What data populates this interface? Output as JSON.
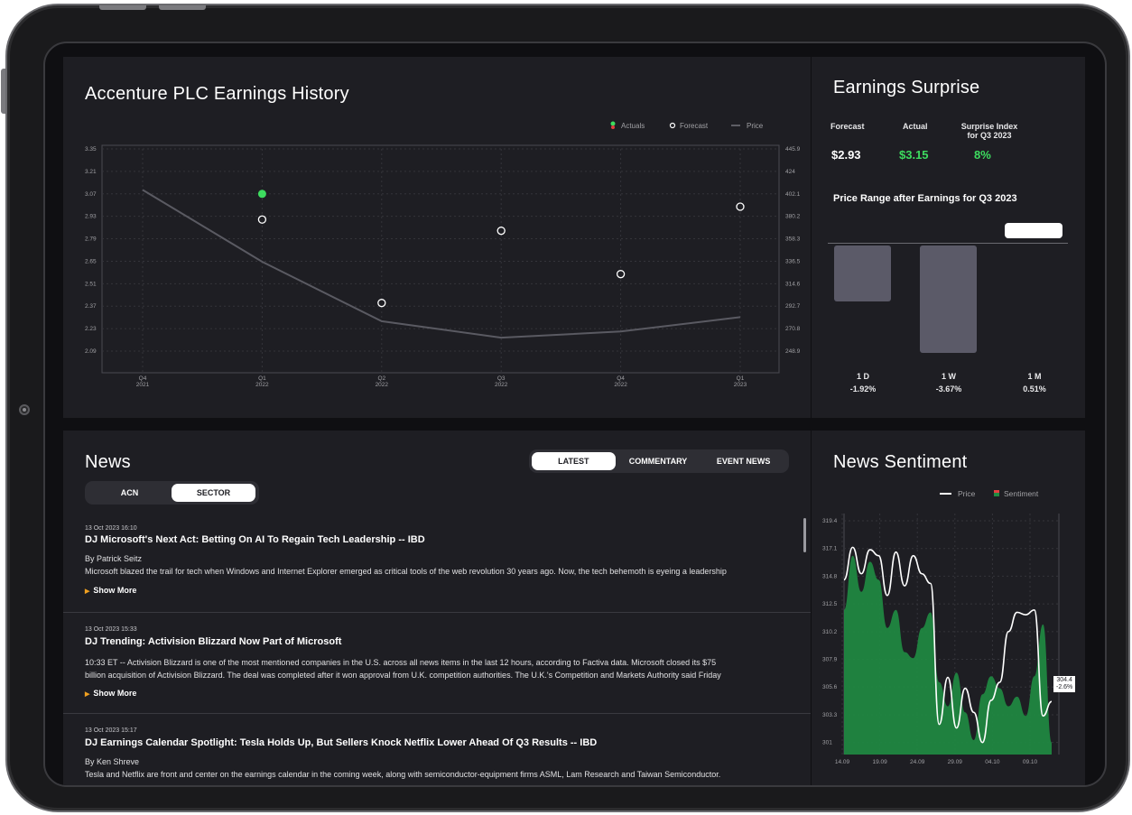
{
  "earnings_history": {
    "title": "Accenture PLC Earnings History",
    "legend": {
      "actuals": "Actuals",
      "forecast": "Forecast",
      "price": "Price"
    }
  },
  "earnings_surprise": {
    "title": "Earnings Surprise",
    "forecast_label": "Forecast",
    "actual_label": "Actual",
    "surprise_label_line1": "Surprise Index",
    "surprise_label_line2": "for Q3 2023",
    "forecast_value": "$2.93",
    "actual_value": "$3.15",
    "surprise_value": "8%",
    "range_title": "Price Range after Earnings for Q3 2023",
    "ranges": [
      {
        "period": "1 D",
        "change": "-1.92%",
        "value": -1.92
      },
      {
        "period": "1 W",
        "change": "-3.67%",
        "value": -3.67
      },
      {
        "period": "1 M",
        "change": "0.51%",
        "value": 0.51
      }
    ]
  },
  "news": {
    "title": "News",
    "tabs": [
      "LATEST",
      "COMMENTARY",
      "EVENT NEWS"
    ],
    "scope_tabs": [
      "ACN",
      "SECTOR"
    ],
    "show_more": "Show More",
    "items": [
      {
        "date": "13 Oct 2023 16:10",
        "headline": "DJ Microsoft's Next Act: Betting On AI To Regain Tech Leadership -- IBD",
        "byline": "By Patrick Seitz",
        "body": "Microsoft blazed the trail for tech when Windows and Internet Explorer emerged as critical tools of the web revolution 30 years ago. Now, the tech behemoth is eyeing a leadership role in the"
      },
      {
        "date": "13 Oct 2023 15:33",
        "headline": "DJ Trending: Activision Blizzard Now Part of Microsoft",
        "byline": "",
        "body": "10:33 ET -- Activision Blizzard is one of the most mentioned companies in the U.S. across all news items in the last 12 hours, according to Factiva data. Microsoft closed its $75 billion acquisition of Activision Blizzard. The deal was completed after it won approval from U.K. competition authorities. The U.K.'s Competition and Markets Authority said Friday that the proposed"
      },
      {
        "date": "13 Oct 2023 15:17",
        "headline": "DJ Earnings Calendar Spotlight: Tesla Holds Up, But Sellers Knock Netflix Lower Ahead Of Q3 Results -- IBD",
        "byline": "By Ken Shreve",
        "body": "Tesla and Netflix are front and center on the earnings calendar in the coming week, along with semiconductor-equipment firms ASML, Lam Research and Taiwan Semiconductor."
      }
    ]
  },
  "sentiment": {
    "title": "News Sentiment",
    "legend": {
      "price": "Price",
      "sentiment": "Sentiment"
    },
    "last_price": "304.4",
    "last_change": "-2.6%"
  },
  "chart_data": [
    {
      "type": "scatter",
      "title": "Accenture PLC Earnings History",
      "categories": [
        "Q4 2021",
        "Q1 2022",
        "Q2 2022",
        "Q3 2022",
        "Q4 2022",
        "Q1 2023"
      ],
      "x_ticks_top": [
        "Q4",
        "Q1",
        "Q2",
        "Q3",
        "Q4",
        "Q1"
      ],
      "x_ticks_bottom": [
        "2021",
        "2022",
        "2022",
        "2022",
        "2022",
        "2023"
      ],
      "left_ticks": [
        "3.35",
        "3.21",
        "3.07",
        "2.93",
        "2.79",
        "2.65",
        "2.51",
        "2.37",
        "2.23",
        "2.09"
      ],
      "right_ticks": [
        "445.9",
        "424",
        "402.1",
        "380.2",
        "358.3",
        "336.5",
        "314.6",
        "292.7",
        "270.8",
        "248.9"
      ],
      "ylim_left": [
        2.09,
        3.35
      ],
      "ylim_right": [
        248.9,
        445.9
      ],
      "series": [
        {
          "name": "Actuals",
          "values": [
            null,
            3.07,
            null,
            null,
            null,
            null
          ],
          "color": "#3ddc5f"
        },
        {
          "name": "Forecast",
          "values": [
            null,
            2.91,
            2.39,
            2.84,
            2.57,
            2.99
          ],
          "color": "#ffffff"
        },
        {
          "name": "Price",
          "axis": "right",
          "values": [
            406,
            336,
            278,
            262,
            268,
            282
          ],
          "color": "#5a5a62"
        }
      ],
      "grid": true,
      "legend": "top-right"
    },
    {
      "type": "bar",
      "title": "Price Range after Earnings for Q3 2023",
      "categories": [
        "1 D",
        "1 W",
        "1 M"
      ],
      "values": [
        -1.92,
        -3.67,
        0.51
      ]
    },
    {
      "type": "area",
      "title": "News Sentiment",
      "x_ticks": [
        "14.09",
        "19.09",
        "24.09",
        "29.09",
        "04.10",
        "09.10"
      ],
      "y_ticks": [
        "319.4",
        "317.1",
        "314.8",
        "312.5",
        "310.2",
        "307.9",
        "305.6",
        "303.3",
        "301"
      ],
      "ylim": [
        300,
        320
      ],
      "series": [
        {
          "name": "Price",
          "color": "#ffffff",
          "values": [
            314.5,
            317.2,
            315.0,
            317.0,
            316.5,
            313.2,
            316.8,
            314.0,
            316.5,
            315.0,
            314.2,
            302.5,
            306.4,
            302.2,
            305.5,
            303.5,
            301.0,
            304.5,
            306.0,
            310.2,
            311.8,
            311.6,
            312.0,
            303.2,
            304.4
          ]
        },
        {
          "name": "Sentiment",
          "color": "#1f8c42",
          "values": [
            312.0,
            316.5,
            313.5,
            316.0,
            314.5,
            310.5,
            312.0,
            308.5,
            308.0,
            310.5,
            311.8,
            306.0,
            304.0,
            306.8,
            303.5,
            301.2,
            305.0,
            306.5,
            305.5,
            304.0,
            304.8,
            303.2,
            306.5,
            310.8,
            301.0
          ]
        }
      ],
      "grid": true,
      "legend": "top-right"
    }
  ]
}
